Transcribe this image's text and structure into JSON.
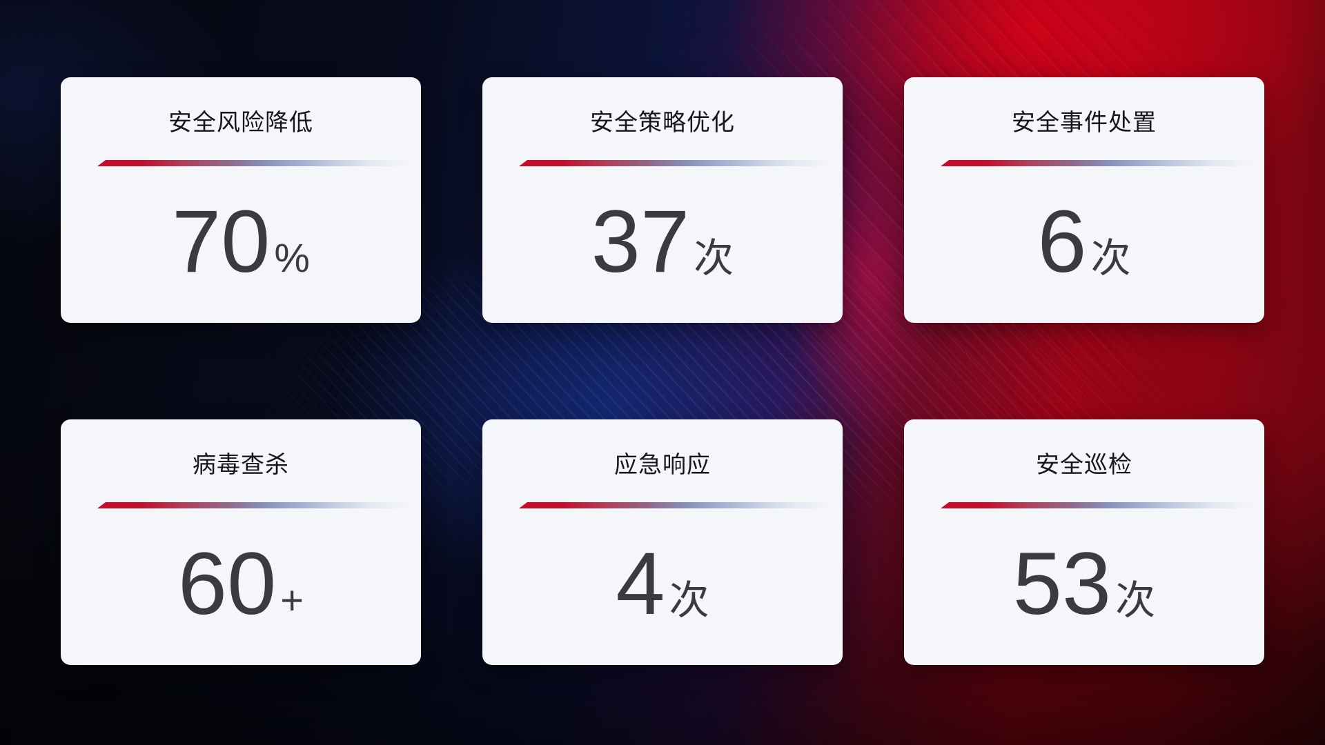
{
  "page": {
    "theme_colors": {
      "background_red_accent": "#b10313",
      "background_blue_accent": "#18369e",
      "card_background": "#f5f6fa",
      "divider_red": "#c30e2e",
      "divider_blue_gray": "#8792bd",
      "title_text": "#16171b",
      "value_text": "#3a3b40"
    }
  },
  "cards": [
    {
      "title": "安全风险降低",
      "value": "70",
      "unit": "%"
    },
    {
      "title": "安全策略优化",
      "value": "37",
      "unit": "次"
    },
    {
      "title": "安全事件处置",
      "value": "6",
      "unit": "次"
    },
    {
      "title": "病毒查杀",
      "value": "60",
      "unit": "+"
    },
    {
      "title": "应急响应",
      "value": "4",
      "unit": "次"
    },
    {
      "title": "安全巡检",
      "value": "53",
      "unit": "次"
    }
  ]
}
